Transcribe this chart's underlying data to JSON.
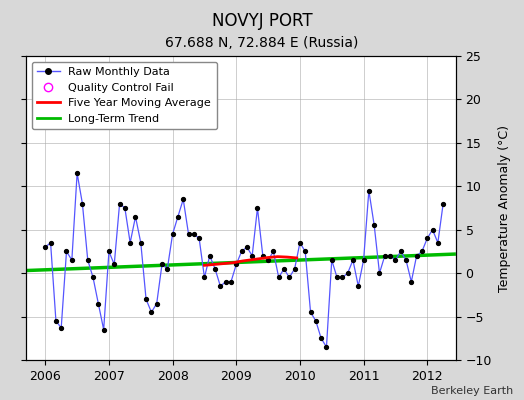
{
  "title": "NOVYJ PORT",
  "subtitle": "67.688 N, 72.884 E (Russia)",
  "ylabel": "Temperature Anomaly (°C)",
  "credit": "Berkeley Earth",
  "ylim": [
    -10,
    25
  ],
  "yticks": [
    -10,
    -5,
    0,
    5,
    10,
    15,
    20,
    25
  ],
  "xlim": [
    2005.7,
    2012.45
  ],
  "background_color": "#d8d8d8",
  "plot_bg_color": "#ffffff",
  "raw_monthly_x": [
    2006.0,
    2006.083,
    2006.167,
    2006.25,
    2006.333,
    2006.417,
    2006.5,
    2006.583,
    2006.667,
    2006.75,
    2006.833,
    2006.917,
    2007.0,
    2007.083,
    2007.167,
    2007.25,
    2007.333,
    2007.417,
    2007.5,
    2007.583,
    2007.667,
    2007.75,
    2007.833,
    2007.917,
    2008.0,
    2008.083,
    2008.167,
    2008.25,
    2008.333,
    2008.417,
    2008.5,
    2008.583,
    2008.667,
    2008.75,
    2008.833,
    2008.917,
    2009.0,
    2009.083,
    2009.167,
    2009.25,
    2009.333,
    2009.417,
    2009.5,
    2009.583,
    2009.667,
    2009.75,
    2009.833,
    2009.917,
    2010.0,
    2010.083,
    2010.167,
    2010.25,
    2010.333,
    2010.417,
    2010.5,
    2010.583,
    2010.667,
    2010.75,
    2010.833,
    2010.917,
    2011.0,
    2011.083,
    2011.167,
    2011.25,
    2011.333,
    2011.417,
    2011.5,
    2011.583,
    2011.667,
    2011.75,
    2011.833,
    2011.917,
    2012.0,
    2012.083,
    2012.167,
    2012.25
  ],
  "raw_monthly_y": [
    3.0,
    3.5,
    -5.5,
    -6.3,
    2.5,
    1.5,
    11.5,
    8.0,
    1.5,
    -0.5,
    -3.5,
    -6.5,
    2.5,
    1.0,
    8.0,
    7.5,
    3.5,
    6.5,
    3.5,
    -3.0,
    -4.5,
    -3.5,
    1.0,
    0.5,
    4.5,
    6.5,
    8.5,
    4.5,
    4.5,
    4.0,
    -0.5,
    2.0,
    0.5,
    -1.5,
    -1.0,
    -1.0,
    1.0,
    2.5,
    3.0,
    2.0,
    7.5,
    2.0,
    1.5,
    2.5,
    -0.5,
    0.5,
    -0.5,
    0.5,
    3.5,
    2.5,
    -4.5,
    -5.5,
    -7.5,
    -8.5,
    1.5,
    -0.5,
    -0.5,
    0.0,
    1.5,
    -1.5,
    1.5,
    9.5,
    5.5,
    0.0,
    2.0,
    2.0,
    1.5,
    2.5,
    1.5,
    -1.0,
    2.0,
    2.5,
    4.0,
    5.0,
    3.5,
    8.0
  ],
  "five_year_ma_x": [
    2008.5,
    2008.65,
    2008.8,
    2008.95,
    2009.1,
    2009.3,
    2009.5,
    2009.65,
    2009.8,
    2009.95
  ],
  "five_year_ma_y": [
    0.9,
    1.0,
    1.1,
    1.2,
    1.4,
    1.6,
    1.8,
    1.9,
    1.85,
    1.75
  ],
  "long_term_trend_x": [
    2005.7,
    2012.45
  ],
  "long_term_trend_y": [
    0.3,
    2.2
  ],
  "raw_color": "#5555ff",
  "marker_color": "#000000",
  "five_year_color": "#ff0000",
  "trend_color": "#00bb00",
  "qc_fail_color": "magenta",
  "qc_fail_x": [],
  "qc_fail_y": [],
  "xticks": [
    2006,
    2007,
    2008,
    2009,
    2010,
    2011,
    2012
  ],
  "title_fontsize": 12,
  "subtitle_fontsize": 10,
  "tick_fontsize": 9,
  "ylabel_fontsize": 9,
  "legend_fontsize": 8,
  "credit_fontsize": 8
}
